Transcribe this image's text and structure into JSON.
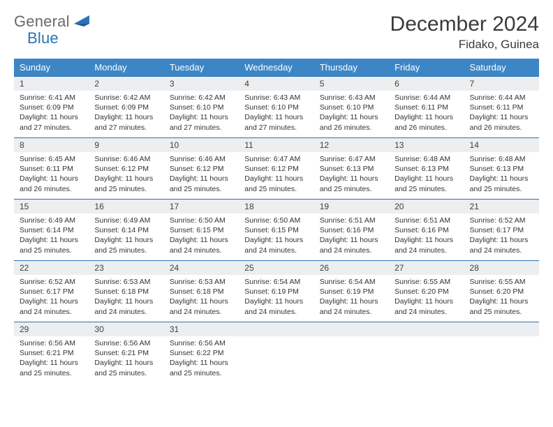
{
  "brand": {
    "part1": "General",
    "part2": "Blue"
  },
  "title": "December 2024",
  "location": "Fidako, Guinea",
  "colors": {
    "header_bg": "#3d86c6",
    "header_text": "#ffffff",
    "row_divider": "#2a72b5",
    "daynum_bg": "#eceef0",
    "body_text": "#333333",
    "logo_gray": "#6a6a6a",
    "logo_blue": "#2a72b5",
    "page_bg": "#ffffff"
  },
  "day_headers": [
    "Sunday",
    "Monday",
    "Tuesday",
    "Wednesday",
    "Thursday",
    "Friday",
    "Saturday"
  ],
  "weeks": [
    [
      {
        "n": "1",
        "sr": "6:41 AM",
        "ss": "6:09 PM",
        "dh": "11",
        "dm": "27"
      },
      {
        "n": "2",
        "sr": "6:42 AM",
        "ss": "6:09 PM",
        "dh": "11",
        "dm": "27"
      },
      {
        "n": "3",
        "sr": "6:42 AM",
        "ss": "6:10 PM",
        "dh": "11",
        "dm": "27"
      },
      {
        "n": "4",
        "sr": "6:43 AM",
        "ss": "6:10 PM",
        "dh": "11",
        "dm": "27"
      },
      {
        "n": "5",
        "sr": "6:43 AM",
        "ss": "6:10 PM",
        "dh": "11",
        "dm": "26"
      },
      {
        "n": "6",
        "sr": "6:44 AM",
        "ss": "6:11 PM",
        "dh": "11",
        "dm": "26"
      },
      {
        "n": "7",
        "sr": "6:44 AM",
        "ss": "6:11 PM",
        "dh": "11",
        "dm": "26"
      }
    ],
    [
      {
        "n": "8",
        "sr": "6:45 AM",
        "ss": "6:11 PM",
        "dh": "11",
        "dm": "26"
      },
      {
        "n": "9",
        "sr": "6:46 AM",
        "ss": "6:12 PM",
        "dh": "11",
        "dm": "25"
      },
      {
        "n": "10",
        "sr": "6:46 AM",
        "ss": "6:12 PM",
        "dh": "11",
        "dm": "25"
      },
      {
        "n": "11",
        "sr": "6:47 AM",
        "ss": "6:12 PM",
        "dh": "11",
        "dm": "25"
      },
      {
        "n": "12",
        "sr": "6:47 AM",
        "ss": "6:13 PM",
        "dh": "11",
        "dm": "25"
      },
      {
        "n": "13",
        "sr": "6:48 AM",
        "ss": "6:13 PM",
        "dh": "11",
        "dm": "25"
      },
      {
        "n": "14",
        "sr": "6:48 AM",
        "ss": "6:13 PM",
        "dh": "11",
        "dm": "25"
      }
    ],
    [
      {
        "n": "15",
        "sr": "6:49 AM",
        "ss": "6:14 PM",
        "dh": "11",
        "dm": "25"
      },
      {
        "n": "16",
        "sr": "6:49 AM",
        "ss": "6:14 PM",
        "dh": "11",
        "dm": "25"
      },
      {
        "n": "17",
        "sr": "6:50 AM",
        "ss": "6:15 PM",
        "dh": "11",
        "dm": "24"
      },
      {
        "n": "18",
        "sr": "6:50 AM",
        "ss": "6:15 PM",
        "dh": "11",
        "dm": "24"
      },
      {
        "n": "19",
        "sr": "6:51 AM",
        "ss": "6:16 PM",
        "dh": "11",
        "dm": "24"
      },
      {
        "n": "20",
        "sr": "6:51 AM",
        "ss": "6:16 PM",
        "dh": "11",
        "dm": "24"
      },
      {
        "n": "21",
        "sr": "6:52 AM",
        "ss": "6:17 PM",
        "dh": "11",
        "dm": "24"
      }
    ],
    [
      {
        "n": "22",
        "sr": "6:52 AM",
        "ss": "6:17 PM",
        "dh": "11",
        "dm": "24"
      },
      {
        "n": "23",
        "sr": "6:53 AM",
        "ss": "6:18 PM",
        "dh": "11",
        "dm": "24"
      },
      {
        "n": "24",
        "sr": "6:53 AM",
        "ss": "6:18 PM",
        "dh": "11",
        "dm": "24"
      },
      {
        "n": "25",
        "sr": "6:54 AM",
        "ss": "6:19 PM",
        "dh": "11",
        "dm": "24"
      },
      {
        "n": "26",
        "sr": "6:54 AM",
        "ss": "6:19 PM",
        "dh": "11",
        "dm": "24"
      },
      {
        "n": "27",
        "sr": "6:55 AM",
        "ss": "6:20 PM",
        "dh": "11",
        "dm": "24"
      },
      {
        "n": "28",
        "sr": "6:55 AM",
        "ss": "6:20 PM",
        "dh": "11",
        "dm": "25"
      }
    ],
    [
      {
        "n": "29",
        "sr": "6:56 AM",
        "ss": "6:21 PM",
        "dh": "11",
        "dm": "25"
      },
      {
        "n": "30",
        "sr": "6:56 AM",
        "ss": "6:21 PM",
        "dh": "11",
        "dm": "25"
      },
      {
        "n": "31",
        "sr": "6:56 AM",
        "ss": "6:22 PM",
        "dh": "11",
        "dm": "25"
      },
      null,
      null,
      null,
      null
    ]
  ],
  "labels": {
    "sunrise": "Sunrise:",
    "sunset": "Sunset:",
    "daylight": "Daylight:",
    "hours": "hours",
    "and": "and",
    "minutes": "minutes."
  }
}
